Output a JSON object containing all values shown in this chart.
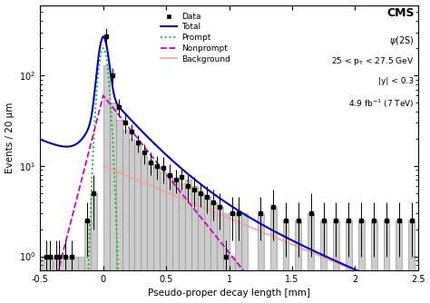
{
  "xlabel": "Pseudo-proper decay length [mm]",
  "ylabel": "Events / 20 μm",
  "xlim": [
    -0.5,
    2.5
  ],
  "ylim_log": [
    0.7,
    600
  ],
  "color_total": "#0000cc",
  "color_prompt": "#00bb00",
  "color_nonprompt": "#cc00cc",
  "color_background": "#ff9999",
  "color_data": "#000000",
  "color_hist_face": "#cccccc",
  "color_hist_edge": "#888888"
}
